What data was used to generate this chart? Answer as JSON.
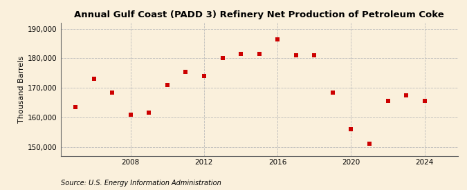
{
  "title": "Annual Gulf Coast (PADD 3) Refinery Net Production of Petroleum Coke",
  "ylabel": "Thousand Barrels",
  "source": "Source: U.S. Energy Information Administration",
  "years": [
    2005,
    2006,
    2007,
    2008,
    2009,
    2010,
    2011,
    2012,
    2013,
    2014,
    2015,
    2016,
    2017,
    2018,
    2019,
    2020,
    2021,
    2022,
    2023,
    2024
  ],
  "values": [
    163500,
    173000,
    168500,
    161000,
    161500,
    171000,
    175500,
    174000,
    180000,
    181500,
    181500,
    186500,
    181000,
    181000,
    168500,
    156000,
    151000,
    165500,
    167500,
    165500
  ],
  "marker_color": "#CC0000",
  "marker_size": 25,
  "background_color": "#FAF0DC",
  "grid_color": "#BBBBBB",
  "yticks": [
    150000,
    160000,
    170000,
    180000,
    190000
  ],
  "xticks": [
    2008,
    2012,
    2016,
    2020,
    2024
  ],
  "ylim": [
    147000,
    192000
  ],
  "xlim": [
    2004.2,
    2025.8
  ],
  "title_fontsize": 9.5,
  "label_fontsize": 8,
  "tick_fontsize": 7.5,
  "source_fontsize": 7
}
